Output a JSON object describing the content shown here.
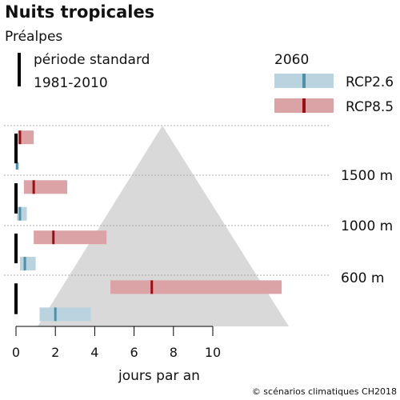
{
  "chart_data": {
    "type": "bar",
    "title": "Nuits tropicales",
    "subtitle": "Préalpes",
    "xlabel": "jours par an",
    "xlim": [
      0,
      10
    ],
    "xticks": [
      0,
      2,
      4,
      6,
      8,
      10
    ],
    "copyright": "© scénarios climatiques CH2018",
    "legend": {
      "reference_label_1": "période standard",
      "reference_label_2": "1981-2010",
      "future_title": "2060",
      "rcp26_label": "RCP2.6",
      "rcp85_label": "RCP8.5"
    },
    "colors": {
      "rcp26_band": "#b9d4de",
      "rcp26_median": "#4f8fa8",
      "rcp85_band": "#dba3a6",
      "rcp85_median": "#9a0f12",
      "reference": "#000000",
      "mountain": "#d9d9d9",
      "gridline": "#aaaaaa"
    },
    "elevation_labels": [
      "1500 m",
      "1000 m",
      "600 m"
    ],
    "bands": [
      {
        "reference": 0.0,
        "rcp85": {
          "low": 0.1,
          "median": 0.2,
          "high": 0.9
        },
        "rcp26": {
          "low": 0.0,
          "median": 0.05,
          "high": 0.15
        }
      },
      {
        "reference": 0.0,
        "rcp85": {
          "low": 0.4,
          "median": 0.9,
          "high": 2.6
        },
        "rcp26": {
          "low": 0.05,
          "median": 0.2,
          "high": 0.55
        }
      },
      {
        "reference": 0.0,
        "rcp85": {
          "low": 0.9,
          "median": 1.9,
          "high": 4.6
        },
        "rcp26": {
          "low": 0.2,
          "median": 0.45,
          "high": 1.0
        }
      },
      {
        "reference": 0.0,
        "rcp85": {
          "low": 4.8,
          "median": 6.9,
          "high": 13.5
        },
        "rcp26": {
          "low": 1.2,
          "median": 2.0,
          "high": 3.8
        }
      }
    ]
  }
}
